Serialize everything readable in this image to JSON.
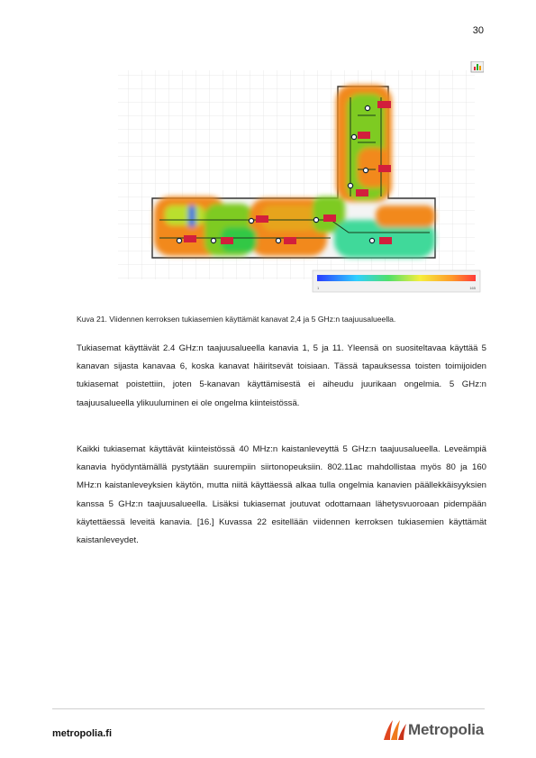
{
  "page": {
    "number": "30"
  },
  "figure": {
    "caption": "Kuva 21. Viidennen kerroksen tukiasemien käyttämät kanavat 2,4 ja 5 GHz:n taajuusalueella.",
    "scale_min": "1",
    "scale_max": "165",
    "colors": {
      "high": "#f2891f",
      "mid": "#7ecb24",
      "low": "#3fd99a",
      "blue": "#3a6fe0",
      "ap": "#d21f3c"
    }
  },
  "body": {
    "paragraph1": "Tukiasemat käyttävät 2.4 GHz:n taajuusalueella kanavia 1, 5 ja 11. Yleensä on suositeltavaa käyttää 5 kanavan sijasta kanavaa 6, koska kanavat häiritsevät toisiaan. Tässä tapauksessa toisten toimijoiden tukiasemat poistettiin, joten 5-kanavan käyttämisestä ei aiheudu juurikaan ongelmia. 5 GHz:n taajuusalueella ylikuuluminen ei ole ongelma kiinteistössä.",
    "paragraph2": "Kaikki tukiasemat käyttävät kiinteistössä 40 MHz:n kaistanleveyttä 5 GHz:n taajuusalueella. Leveämpiä kanavia hyödyntämällä pystytään suurempiin siirtonopeuksiin. 802.11ac mahdollistaa myös 80 ja 160 MHz:n kaistanleveyksien käytön, mutta niitä käyttäessä alkaa tulla ongelmia kanavien päällekkäisyyksien kanssa 5 GHz:n taajuusalueella. Lisäksi tukiasemat joutuvat odottamaan lähetysvuoroaan pidempään käytettäessä leveitä kanavia. [16.] Kuvassa 22 esitellään viidennen kerroksen tukiasemien käyttämät kaistanleveydet."
  },
  "footer": {
    "url": "metropolia.fi",
    "logo_text": "Metropolia"
  }
}
